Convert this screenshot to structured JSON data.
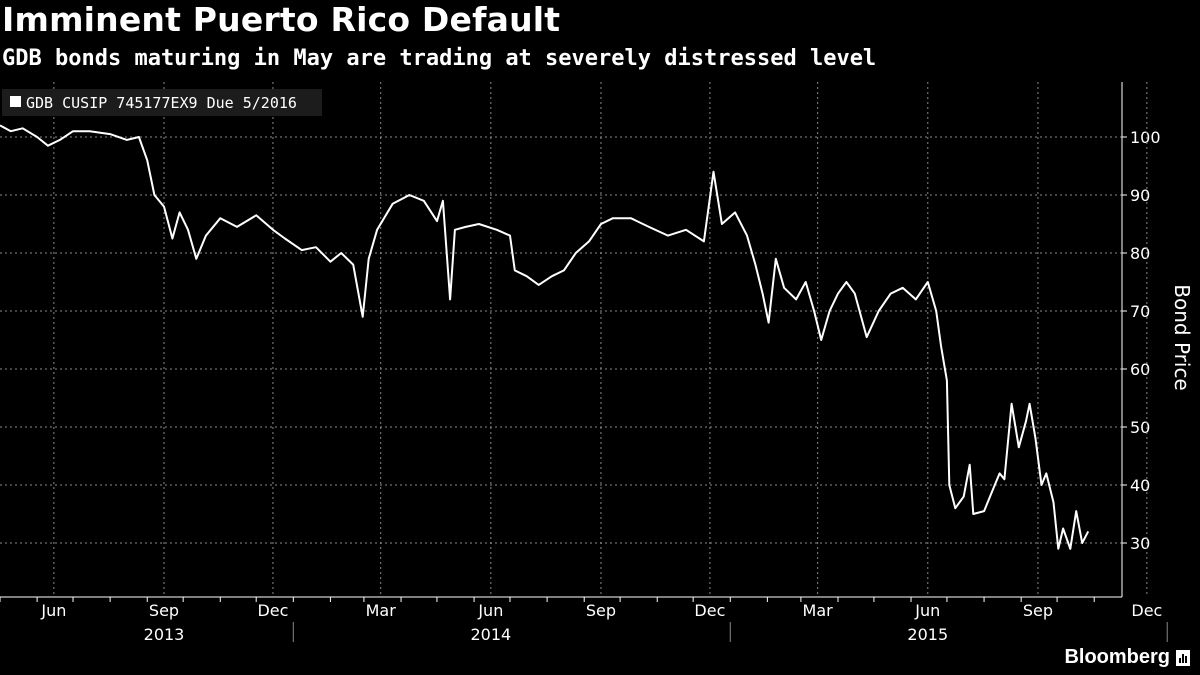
{
  "chart_data": {
    "type": "line",
    "title": "Imminent Puerto Rico Default",
    "subtitle": "GDB bonds maturing in May are trading at severely distressed level",
    "ylabel": "Bond Price",
    "ylim": [
      20,
      110
    ],
    "yticks": [
      30,
      40,
      50,
      60,
      70,
      80,
      90,
      100
    ],
    "grid": true,
    "legend_position": "top-left",
    "x_month_labels": [
      {
        "label": "Jun",
        "date": "2013-06-15"
      },
      {
        "label": "Sep",
        "date": "2013-09-15"
      },
      {
        "label": "Dec",
        "date": "2013-12-15"
      },
      {
        "label": "Mar",
        "date": "2014-03-15"
      },
      {
        "label": "Jun",
        "date": "2014-06-15"
      },
      {
        "label": "Sep",
        "date": "2014-09-15"
      },
      {
        "label": "Dec",
        "date": "2014-12-15"
      },
      {
        "label": "Mar",
        "date": "2015-03-15"
      },
      {
        "label": "Jun",
        "date": "2015-06-15"
      },
      {
        "label": "Sep",
        "date": "2015-09-15"
      },
      {
        "label": "Dec",
        "date": "2015-12-15"
      }
    ],
    "x_year_labels": [
      {
        "label": "2013",
        "date": "2013-09-15"
      },
      {
        "label": "2014",
        "date": "2014-06-15"
      },
      {
        "label": "2015",
        "date": "2015-06-15"
      }
    ],
    "series": [
      {
        "name": "GDB CUSIP 745177EX9 Due 5/2016",
        "color": "#ffffff",
        "points": [
          [
            "2013-05-01",
            102
          ],
          [
            "2013-05-10",
            101
          ],
          [
            "2013-05-20",
            101.5
          ],
          [
            "2013-06-01",
            100
          ],
          [
            "2013-06-10",
            98.5
          ],
          [
            "2013-06-20",
            99.5
          ],
          [
            "2013-07-01",
            101
          ],
          [
            "2013-07-15",
            101
          ],
          [
            "2013-08-01",
            100.5
          ],
          [
            "2013-08-15",
            99.5
          ],
          [
            "2013-08-25",
            100
          ],
          [
            "2013-09-01",
            96
          ],
          [
            "2013-09-07",
            90
          ],
          [
            "2013-09-15",
            88
          ],
          [
            "2013-09-22",
            82.5
          ],
          [
            "2013-09-28",
            87
          ],
          [
            "2013-10-05",
            84
          ],
          [
            "2013-10-12",
            79
          ],
          [
            "2013-10-20",
            83
          ],
          [
            "2013-11-01",
            86
          ],
          [
            "2013-11-15",
            84.5
          ],
          [
            "2013-12-01",
            86.5
          ],
          [
            "2013-12-15",
            84
          ],
          [
            "2013-12-25",
            82.5
          ],
          [
            "2014-01-08",
            80.5
          ],
          [
            "2014-01-20",
            81
          ],
          [
            "2014-02-01",
            78.5
          ],
          [
            "2014-02-10",
            80
          ],
          [
            "2014-02-20",
            78
          ],
          [
            "2014-02-28",
            69
          ],
          [
            "2014-03-05",
            79
          ],
          [
            "2014-03-12",
            84
          ],
          [
            "2014-03-25",
            88.5
          ],
          [
            "2014-04-08",
            90
          ],
          [
            "2014-04-20",
            89
          ],
          [
            "2014-05-01",
            85.5
          ],
          [
            "2014-05-06",
            89
          ],
          [
            "2014-05-12",
            72
          ],
          [
            "2014-05-16",
            84
          ],
          [
            "2014-05-25",
            84.5
          ],
          [
            "2014-06-05",
            85
          ],
          [
            "2014-06-20",
            84
          ],
          [
            "2014-07-01",
            83
          ],
          [
            "2014-07-05",
            77
          ],
          [
            "2014-07-15",
            76
          ],
          [
            "2014-07-25",
            74.5
          ],
          [
            "2014-08-05",
            76
          ],
          [
            "2014-08-15",
            77
          ],
          [
            "2014-08-25",
            80
          ],
          [
            "2014-09-05",
            82
          ],
          [
            "2014-09-15",
            85
          ],
          [
            "2014-09-25",
            86
          ],
          [
            "2014-10-10",
            86
          ],
          [
            "2014-10-25",
            84.5
          ],
          [
            "2014-11-10",
            83
          ],
          [
            "2014-11-25",
            84
          ],
          [
            "2014-12-10",
            82
          ],
          [
            "2014-12-18",
            94
          ],
          [
            "2014-12-25",
            85
          ],
          [
            "2015-01-05",
            87
          ],
          [
            "2015-01-15",
            83
          ],
          [
            "2015-01-22",
            78
          ],
          [
            "2015-01-28",
            73
          ],
          [
            "2015-02-02",
            68
          ],
          [
            "2015-02-08",
            79
          ],
          [
            "2015-02-15",
            74
          ],
          [
            "2015-02-25",
            72
          ],
          [
            "2015-03-05",
            75
          ],
          [
            "2015-03-12",
            70
          ],
          [
            "2015-03-18",
            65
          ],
          [
            "2015-03-25",
            70
          ],
          [
            "2015-04-01",
            73
          ],
          [
            "2015-04-08",
            75
          ],
          [
            "2015-04-15",
            73
          ],
          [
            "2015-04-25",
            65.5
          ],
          [
            "2015-05-05",
            70
          ],
          [
            "2015-05-15",
            73
          ],
          [
            "2015-05-25",
            74
          ],
          [
            "2015-06-05",
            72
          ],
          [
            "2015-06-15",
            75
          ],
          [
            "2015-06-22",
            70
          ],
          [
            "2015-06-26",
            64
          ],
          [
            "2015-07-01",
            58
          ],
          [
            "2015-07-03",
            40
          ],
          [
            "2015-07-08",
            36
          ],
          [
            "2015-07-15",
            38
          ],
          [
            "2015-07-20",
            43.5
          ],
          [
            "2015-07-23",
            35
          ],
          [
            "2015-08-01",
            35.5
          ],
          [
            "2015-08-08",
            39
          ],
          [
            "2015-08-14",
            42
          ],
          [
            "2015-08-18",
            41
          ],
          [
            "2015-08-24",
            54
          ],
          [
            "2015-08-30",
            46.5
          ],
          [
            "2015-09-05",
            51
          ],
          [
            "2015-09-08",
            54
          ],
          [
            "2015-09-13",
            48
          ],
          [
            "2015-09-18",
            40
          ],
          [
            "2015-09-22",
            42
          ],
          [
            "2015-09-28",
            37
          ],
          [
            "2015-10-02",
            29
          ],
          [
            "2015-10-06",
            32.5
          ],
          [
            "2015-10-12",
            29
          ],
          [
            "2015-10-17",
            35.5
          ],
          [
            "2015-10-22",
            30
          ],
          [
            "2015-10-27",
            32
          ]
        ]
      }
    ]
  },
  "brand": {
    "name": "Bloomberg"
  }
}
